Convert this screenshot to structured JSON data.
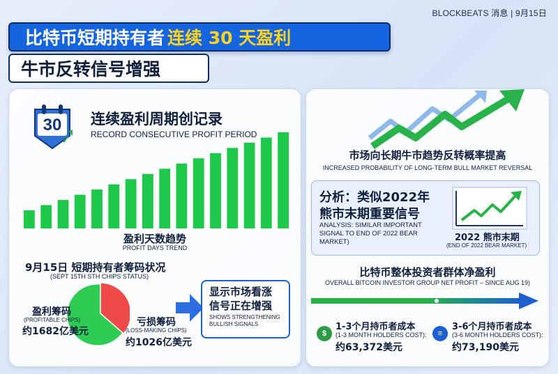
{
  "header": {
    "brand": "BLOCKBEATS 消息 | 9月15日",
    "title_main": "比特币短期持有者",
    "title_highlight": "连续 30 天盈利",
    "subtitle": "牛市反转信号增强"
  },
  "record": {
    "badge_number": "30",
    "title_cn": "连续盈利周期创记录",
    "title_en": "RECORD CONSECUTIVE PROFIT PERIOD"
  },
  "trend": {
    "title_cn": "盈利天数趋势",
    "title_en": "PROFIT DAYS TREND",
    "bar_count": 16,
    "bar_color": "#1ec84a"
  },
  "chips": {
    "title_cn": "9月15日 短期持有者筹码状况",
    "title_en": "(SEPT 15TH STH CHIPS STATUS)",
    "profit_label_cn": "盈利筹码",
    "profit_label_en": "(PROFITABLE CHIPS)",
    "profit_value": "约1682亿美元",
    "loss_label_cn": "亏损筹码",
    "loss_label_en": "(LOSS-MAKING CHIPS)",
    "loss_value": "约1026亿美元",
    "profit_color": "#2ecc52",
    "loss_color": "#ee4a4a"
  },
  "signal": {
    "text_cn": "显示市场看涨信号正在增强",
    "text_en": "SHOWS STRENGTHENING BULLISH SIGNALS"
  },
  "bull": {
    "title_cn": "市场向长期牛市趋势反转概率提高",
    "title_en": "INCREASED PROBABILITY OF LONG-TERM BULL MARKET REVERSAL"
  },
  "analysis": {
    "title_cn_line1": "分析：类似2022年",
    "title_cn_line2": "熊市末期重要信号",
    "text_en": "ANALYSIS: SIMILAR IMPORTANT SIGNAL TO END OF 2022 BEAR MARKET)",
    "bear_label_cn": "2022 熊市末期",
    "bear_label_en": "(END OF 2022 BEAR MARKET)"
  },
  "overall": {
    "title_cn": "比特币整体投资者群体净盈利",
    "title_en": "OVERALL BITCOIN INVESTOR GROUP NET PROFIT – SINCE AUG 19)"
  },
  "holders": [
    {
      "icon": "$",
      "label_cn": "1-3个月持币者成本",
      "label_en": "(1-3 MONTH HOLDERS COST):",
      "value": "约63,372美元"
    },
    {
      "icon": "≡",
      "label_cn": "3-6个月持币者成本",
      "label_en": "(3-6 MONTH HOLDERS COST):",
      "value": "约73,190美元"
    }
  ]
}
